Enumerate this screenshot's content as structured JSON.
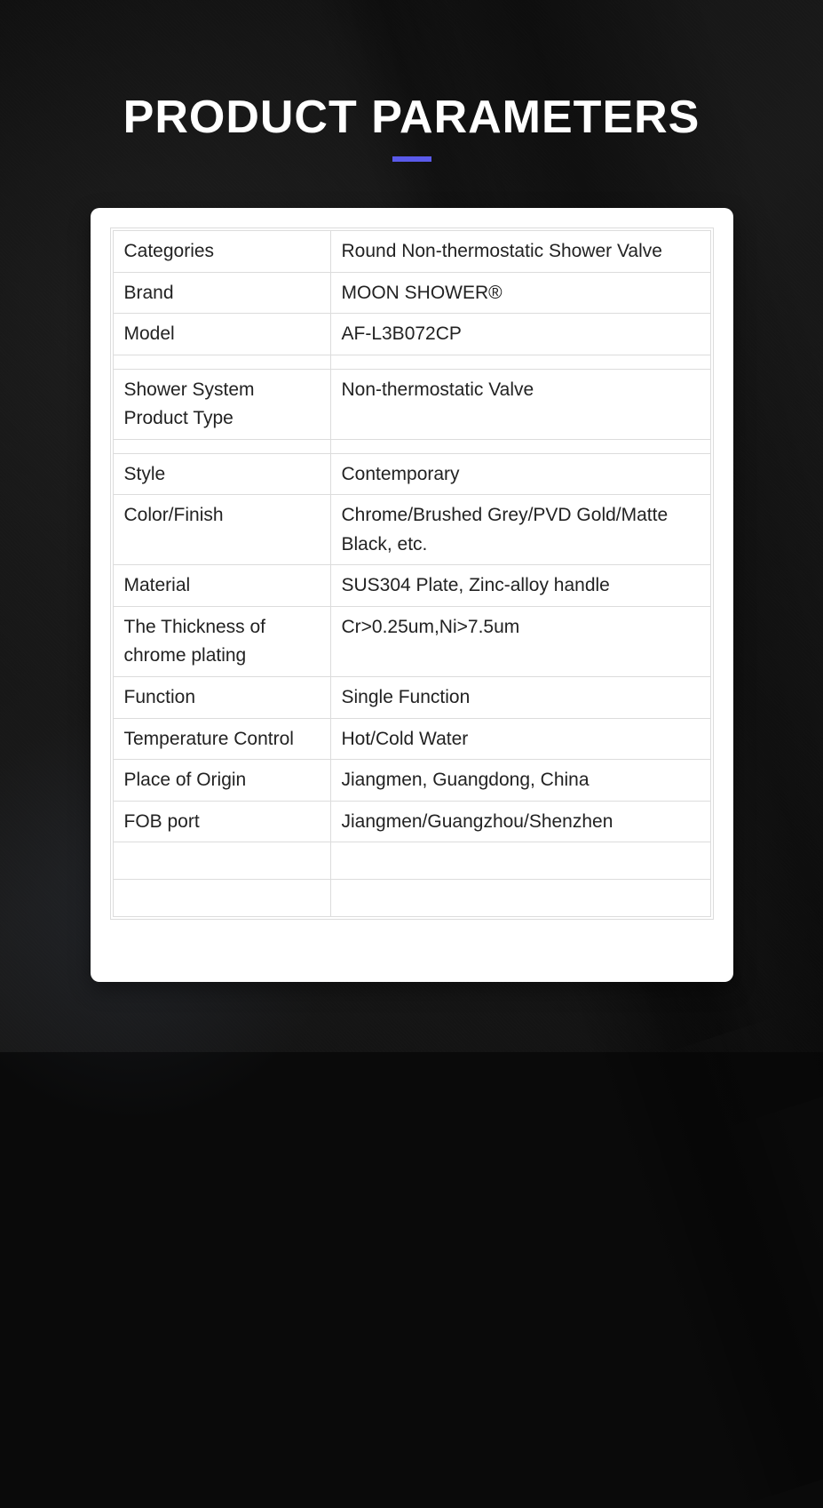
{
  "title": "PRODUCT PARAMETERS",
  "style": {
    "title_color": "#ffffff",
    "title_fontsize": 52,
    "title_fontweight": 800,
    "underline_color": "#5a5aea",
    "underline_width": 44,
    "underline_height": 6,
    "background_color": "#0a0a0a",
    "card_background": "#ffffff",
    "card_radius": 10,
    "table_border_color": "#dcdcdc",
    "cell_text_color": "#222222",
    "cell_fontsize": 21,
    "key_col_width": 245
  },
  "table": {
    "rows": [
      {
        "key": "Categories",
        "value": "Round Non-thermostatic Shower Valve"
      },
      {
        "key": "Brand",
        "value": "MOON SHOWER®"
      },
      {
        "key": "Model",
        "value": "AF-L3B072CP"
      },
      {
        "gap": true
      },
      {
        "key": "Shower System Product Type",
        "value": "Non-thermostatic Valve"
      },
      {
        "gap": true
      },
      {
        "key": "Style",
        "value": "Contemporary"
      },
      {
        "key": "Color/Finish",
        "value": "Chrome/Brushed Grey/PVD Gold/Matte Black, etc."
      },
      {
        "key": "Material",
        "value": "SUS304 Plate, Zinc-alloy handle"
      },
      {
        "key": "The Thickness of chrome plating",
        "value": "Cr>0.25um,Ni>7.5um"
      },
      {
        "key": "Function",
        "value": "Single Function"
      },
      {
        "key": "Temperature Control",
        "value": "Hot/Cold Water"
      },
      {
        "key": "Place of Origin",
        "value": "Jiangmen, Guangdong, China"
      },
      {
        "key": "FOB port",
        "value": "Jiangmen/Guangzhou/Shenzhen"
      },
      {
        "empty": true
      },
      {
        "empty": true
      }
    ]
  }
}
